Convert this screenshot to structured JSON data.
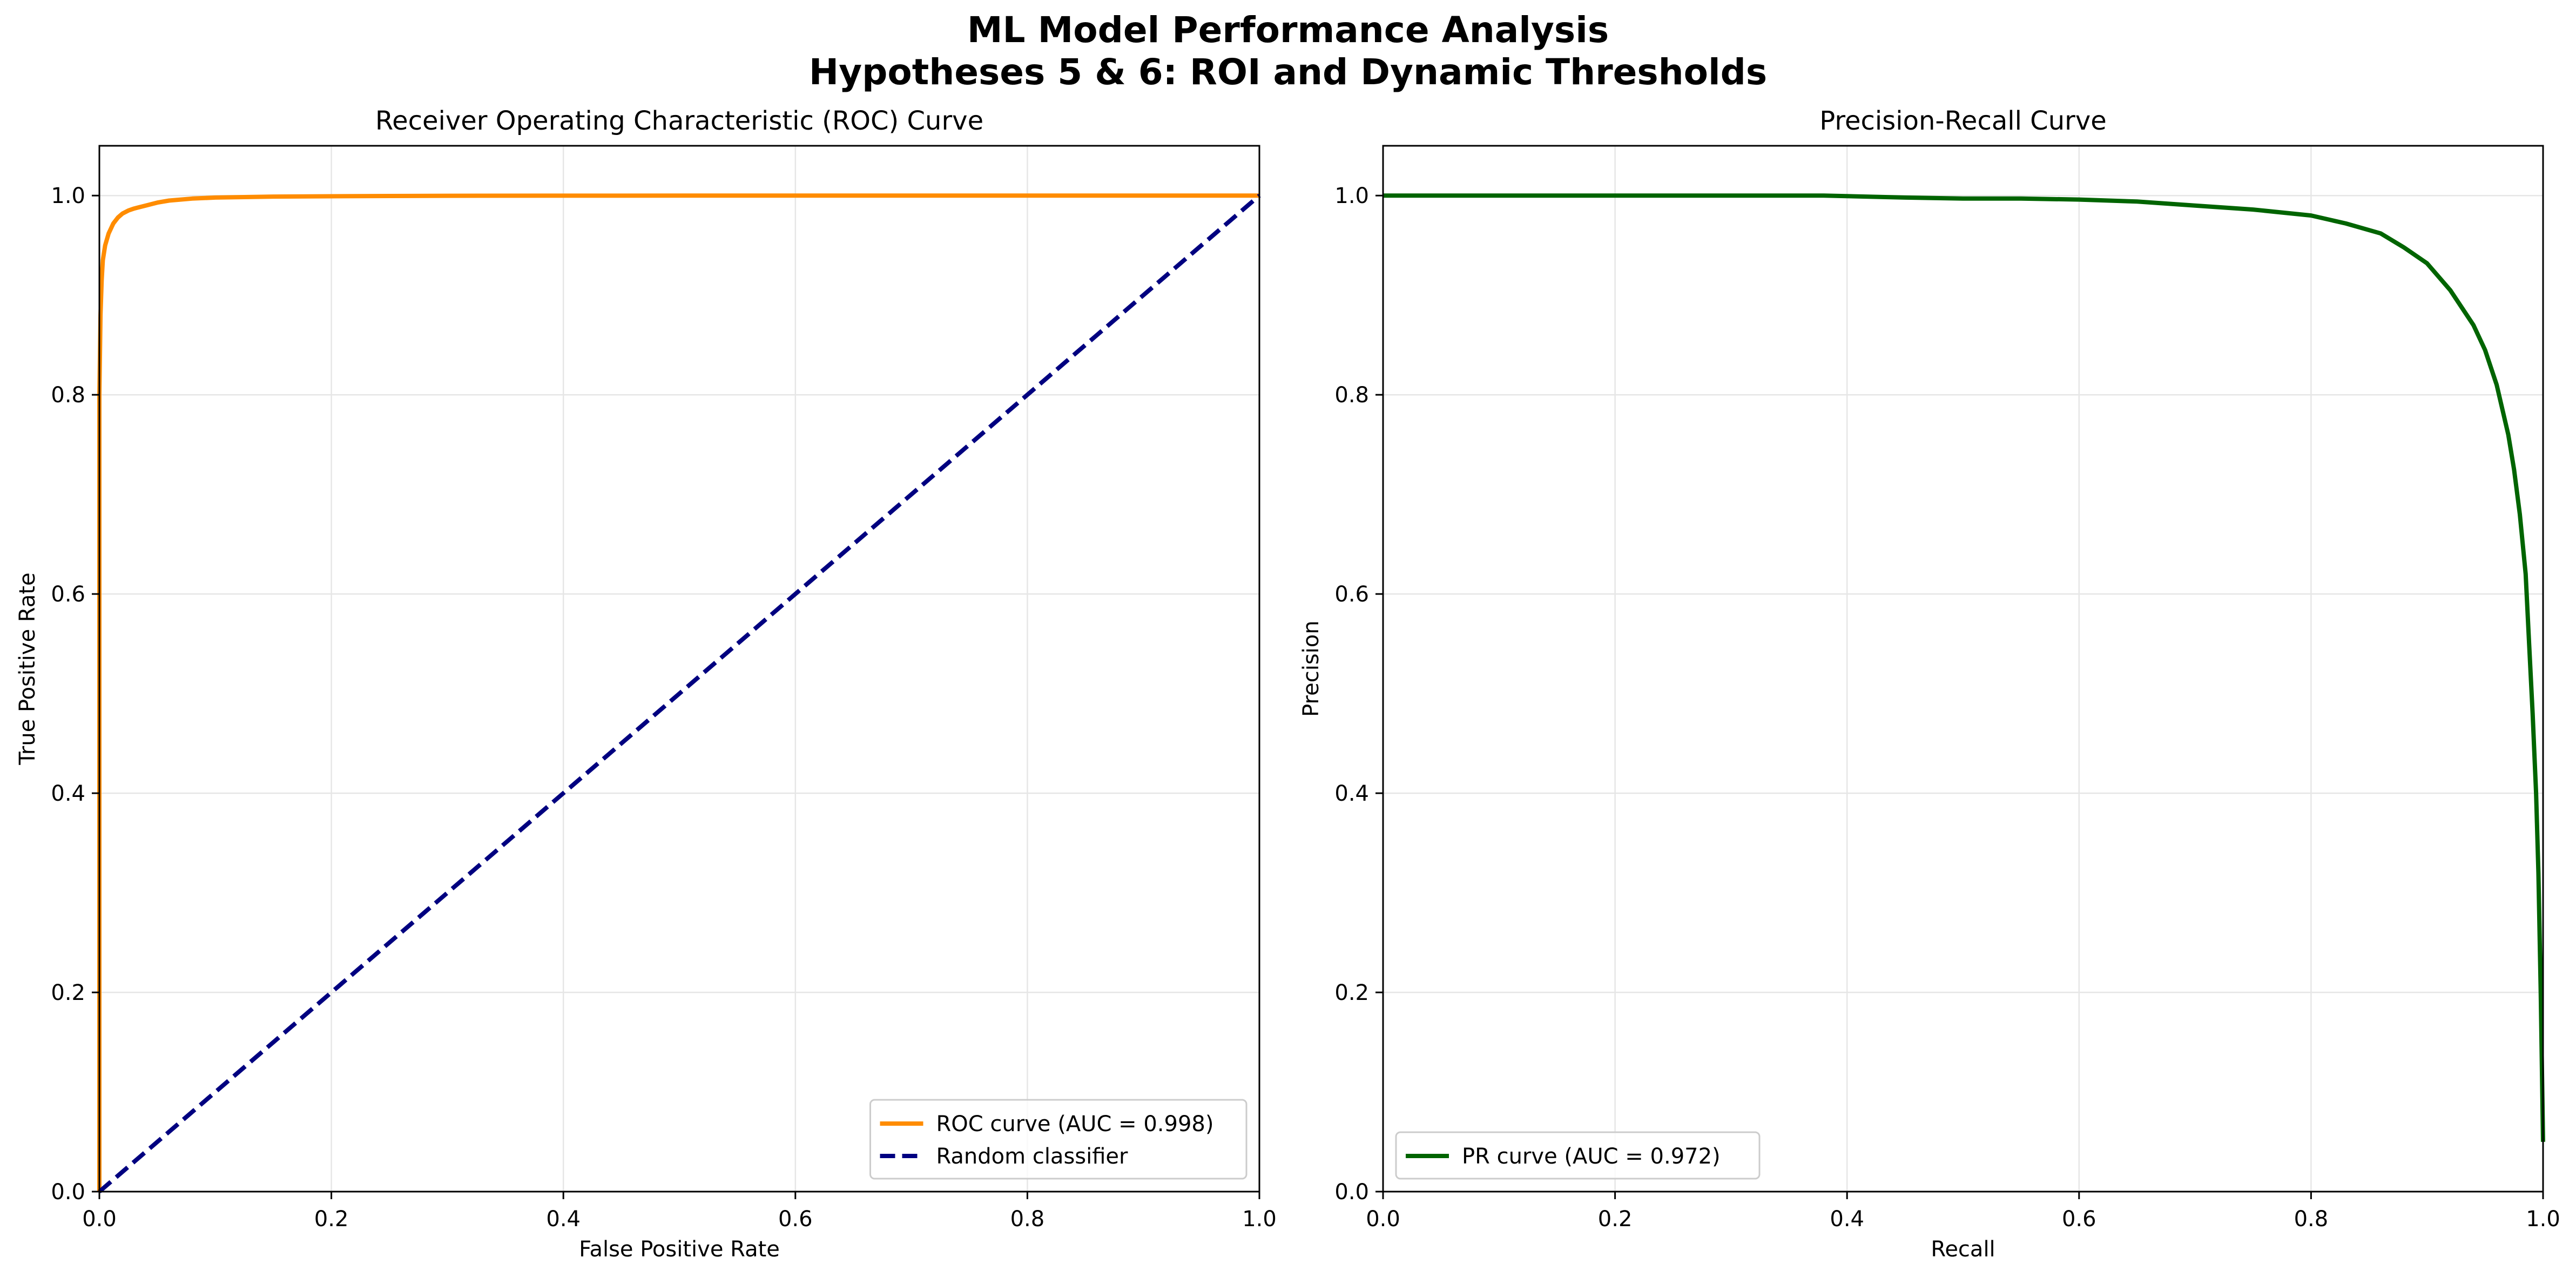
{
  "figure": {
    "title_line1": "ML Model Performance Analysis",
    "title_line2": "Hypotheses 5 & 6: ROI and Dynamic Thresholds"
  },
  "chart_data": [
    {
      "type": "line",
      "title": "Receiver Operating Characteristic (ROC) Curve",
      "xlabel": "False Positive Rate",
      "ylabel": "True Positive Rate",
      "xlim": [
        0.0,
        1.0
      ],
      "ylim": [
        0.0,
        1.05
      ],
      "xticks": [
        "0.0",
        "0.2",
        "0.4",
        "0.6",
        "0.8",
        "1.0"
      ],
      "yticks": [
        "0.0",
        "0.2",
        "0.4",
        "0.6",
        "0.8",
        "1.0"
      ],
      "grid": true,
      "legend_position": "lower-right",
      "series": [
        {
          "name": "ROC curve (AUC = 0.998)",
          "color": "#ff8c00",
          "style": "solid",
          "x": [
            0.0,
            0.0,
            0.001,
            0.002,
            0.003,
            0.005,
            0.008,
            0.012,
            0.016,
            0.02,
            0.025,
            0.03,
            0.04,
            0.05,
            0.06,
            0.08,
            0.1,
            0.15,
            0.2,
            0.25,
            0.3,
            0.4,
            0.6,
            0.8,
            1.0
          ],
          "y": [
            0.0,
            0.8,
            0.88,
            0.915,
            0.935,
            0.95,
            0.962,
            0.972,
            0.978,
            0.982,
            0.985,
            0.987,
            0.99,
            0.993,
            0.995,
            0.997,
            0.998,
            0.999,
            0.9993,
            0.9996,
            0.9998,
            0.9999,
            1.0,
            1.0,
            1.0
          ]
        },
        {
          "name": "Random classifier",
          "color": "#000080",
          "style": "dashed",
          "x": [
            0.0,
            1.0
          ],
          "y": [
            0.0,
            1.0
          ]
        }
      ]
    },
    {
      "type": "line",
      "title": "Precision-Recall Curve",
      "xlabel": "Recall",
      "ylabel": "Precision",
      "xlim": [
        0.0,
        1.0
      ],
      "ylim": [
        0.0,
        1.05
      ],
      "xticks": [
        "0.0",
        "0.2",
        "0.4",
        "0.6",
        "0.8",
        "1.0"
      ],
      "yticks": [
        "0.0",
        "0.2",
        "0.4",
        "0.6",
        "0.8",
        "1.0"
      ],
      "grid": true,
      "legend_position": "lower-left",
      "series": [
        {
          "name": "PR curve (AUC = 0.972)",
          "color": "#006400",
          "style": "solid",
          "x": [
            0.0,
            0.2,
            0.38,
            0.45,
            0.5,
            0.55,
            0.6,
            0.65,
            0.7,
            0.75,
            0.8,
            0.83,
            0.86,
            0.88,
            0.9,
            0.92,
            0.94,
            0.95,
            0.96,
            0.97,
            0.975,
            0.98,
            0.985,
            0.988,
            0.991,
            0.994,
            0.996,
            0.998,
            1.0
          ],
          "y": [
            1.0,
            1.0,
            1.0,
            0.998,
            0.997,
            0.997,
            0.996,
            0.994,
            0.99,
            0.986,
            0.98,
            0.972,
            0.962,
            0.948,
            0.932,
            0.905,
            0.87,
            0.845,
            0.81,
            0.76,
            0.725,
            0.68,
            0.62,
            0.55,
            0.48,
            0.4,
            0.32,
            0.2,
            0.05
          ]
        }
      ]
    }
  ]
}
